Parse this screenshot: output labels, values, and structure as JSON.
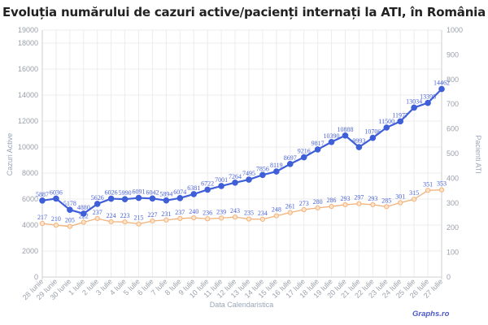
{
  "title": "Evoluția numărului de cazuri active/pacienți internați la ATI, în România",
  "brand": "Graphs.ro",
  "colors": {
    "active": "#3f5fd8",
    "ati": "#f2b27a",
    "grid": "#ececec",
    "axis": "#cfcfcf"
  },
  "chart_data": {
    "type": "line",
    "title": "Evoluția numărului de cazuri active/pacienți internați la ATI, în România",
    "xlabel": "Data Calendaristica",
    "ylabel": "Cazuri Active",
    "ylabel_right": "Pacienti ATI",
    "ylim": [
      0,
      19000
    ],
    "ylim_right": [
      0,
      1000
    ],
    "yticks_left": [
      0,
      2000,
      4000,
      6000,
      8000,
      10000,
      12000,
      14000,
      16000,
      18000,
      19000
    ],
    "yticks_right": [
      0,
      100,
      200,
      300,
      400,
      500,
      600,
      700,
      800,
      900,
      1000
    ],
    "grid": true,
    "legend": "none",
    "categories": [
      "28 Iunie",
      "29 Iunie",
      "30 Iunie",
      "1 Iulie",
      "2 Iulie",
      "3 Iulie",
      "4 Iulie",
      "5 Iulie",
      "6 Iulie",
      "7 Iulie",
      "8 Iulie",
      "9 Iulie",
      "10 Iulie",
      "11 Iulie",
      "12 Iulie",
      "13 Iulie",
      "14 Iulie",
      "15 Iulie",
      "16 Iulie",
      "17 Iulie",
      "18 Iulie",
      "19 Iulie",
      "20 Iulie",
      "21 Iulie",
      "22 Iulie",
      "23 Iulie",
      "24 Iulie",
      "25 Iulie",
      "26 Iulie",
      "27 Iulie"
    ],
    "series": [
      {
        "name": "Cazuri Active",
        "axis": "left",
        "values": [
          5887,
          6036,
          5178,
          4880,
          5626,
          6026,
          5990,
          6091,
          6042,
          5894,
          6074,
          6381,
          6722,
          7001,
          7264,
          7495,
          7856,
          8119,
          8697,
          9216,
          9817,
          10390,
          10888,
          9993,
          10706,
          11500,
          11977,
          13034,
          13398,
          14462
        ]
      },
      {
        "name": "Pacienti ATI",
        "axis": "right",
        "values": [
          217,
          210,
          205,
          222,
          237,
          224,
          223,
          215,
          227,
          231,
          237,
          240,
          236,
          239,
          243,
          235,
          234,
          248,
          261,
          273,
          280,
          286,
          293,
          297,
          293,
          285,
          301,
          315,
          351,
          353
        ]
      }
    ]
  }
}
